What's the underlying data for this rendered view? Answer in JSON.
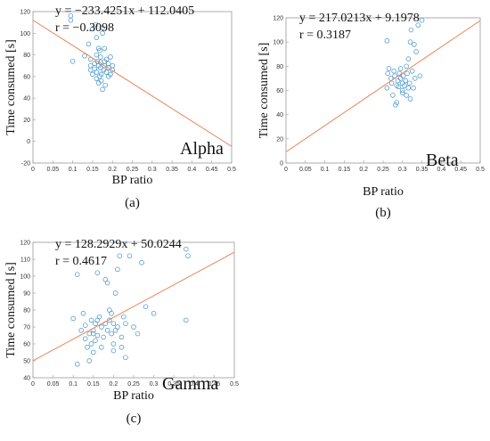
{
  "chart_data": [
    {
      "type": "scatter",
      "panel": "Alpha",
      "caption": "(a)",
      "xlabel": "BP ratio",
      "ylabel": "Time consumed [s]",
      "equation": "y = −233.4251x + 112.0405",
      "r_label": "r = −0.3098",
      "xlim": [
        0,
        0.5
      ],
      "ylim": [
        -20,
        120
      ],
      "xticks": [
        0,
        0.05,
        0.1,
        0.15,
        0.2,
        0.25,
        0.3,
        0.35,
        0.4,
        0.45,
        0.5
      ],
      "xtick_labels": [
        "0",
        "0.05",
        "0.1",
        "0.15",
        "0.2",
        "0.25",
        "0.3",
        "0.35",
        "0.4",
        "0.45",
        "0.5"
      ],
      "yticks": [
        -20,
        0,
        20,
        40,
        60,
        80,
        100,
        120
      ],
      "ytick_labels": [
        "-20",
        "0",
        "20",
        "40",
        "60",
        "80",
        "100",
        "120"
      ],
      "fit": {
        "slope": -233.4251,
        "intercept": 112.0405
      },
      "points": [
        [
          0.095,
          112
        ],
        [
          0.095,
          116
        ],
        [
          0.1,
          74
        ],
        [
          0.13,
          79
        ],
        [
          0.14,
          90
        ],
        [
          0.145,
          70
        ],
        [
          0.145,
          76
        ],
        [
          0.15,
          104
        ],
        [
          0.155,
          67
        ],
        [
          0.155,
          72
        ],
        [
          0.16,
          58
        ],
        [
          0.16,
          64
        ],
        [
          0.16,
          80
        ],
        [
          0.16,
          96
        ],
        [
          0.165,
          70
        ],
        [
          0.165,
          54
        ],
        [
          0.165,
          86
        ],
        [
          0.168,
          60
        ],
        [
          0.17,
          73
        ],
        [
          0.17,
          68
        ],
        [
          0.17,
          78
        ],
        [
          0.172,
          62
        ],
        [
          0.175,
          100
        ],
        [
          0.175,
          105
        ],
        [
          0.175,
          48
        ],
        [
          0.178,
          66
        ],
        [
          0.18,
          70
        ],
        [
          0.18,
          74
        ],
        [
          0.182,
          52
        ],
        [
          0.185,
          64
        ],
        [
          0.185,
          76
        ],
        [
          0.19,
          68
        ],
        [
          0.19,
          72
        ],
        [
          0.195,
          78
        ],
        [
          0.195,
          62
        ],
        [
          0.2,
          70
        ],
        [
          0.2,
          66
        ],
        [
          0.15,
          62
        ],
        [
          0.145,
          66
        ],
        [
          0.162,
          74
        ],
        [
          0.168,
          84
        ],
        [
          0.172,
          56
        ],
        [
          0.158,
          108
        ],
        [
          0.18,
          86
        ],
        [
          0.19,
          60
        ]
      ]
    },
    {
      "type": "scatter",
      "panel": "Beta",
      "caption": "(b)",
      "xlabel": "BP ratio",
      "ylabel": "Time consumed [s]",
      "equation": "y = 217.0213x + 9.1978",
      "r_label": "r = 0.3187",
      "xlim": [
        0,
        0.5
      ],
      "ylim": [
        0,
        120
      ],
      "xticks": [
        0,
        0.05,
        0.1,
        0.15,
        0.2,
        0.25,
        0.3,
        0.35,
        0.4,
        0.45,
        0.5
      ],
      "xtick_labels": [
        "0",
        "0.05",
        "0.1",
        "0.15",
        "0.2",
        "0.25",
        "0.3",
        "0.35",
        "0.4",
        "0.45",
        "0.5"
      ],
      "yticks": [
        0,
        20,
        40,
        60,
        80,
        100,
        120
      ],
      "ytick_labels": [
        "0",
        "20",
        "40",
        "60",
        "80",
        "100",
        "120"
      ],
      "fit": {
        "slope": 217.0213,
        "intercept": 9.1978
      },
      "points": [
        [
          0.26,
          101
        ],
        [
          0.26,
          62
        ],
        [
          0.262,
          74
        ],
        [
          0.265,
          78
        ],
        [
          0.27,
          70
        ],
        [
          0.272,
          66
        ],
        [
          0.275,
          56
        ],
        [
          0.278,
          76
        ],
        [
          0.28,
          72
        ],
        [
          0.282,
          48
        ],
        [
          0.285,
          50
        ],
        [
          0.288,
          68
        ],
        [
          0.29,
          63
        ],
        [
          0.292,
          74
        ],
        [
          0.295,
          70
        ],
        [
          0.3,
          66
        ],
        [
          0.3,
          60
        ],
        [
          0.302,
          72
        ],
        [
          0.305,
          64
        ],
        [
          0.308,
          68
        ],
        [
          0.31,
          80
        ],
        [
          0.31,
          56
        ],
        [
          0.312,
          74
        ],
        [
          0.315,
          62
        ],
        [
          0.315,
          86
        ],
        [
          0.318,
          66
        ],
        [
          0.32,
          53
        ],
        [
          0.32,
          100
        ],
        [
          0.322,
          110
        ],
        [
          0.325,
          76
        ],
        [
          0.328,
          62
        ],
        [
          0.33,
          98
        ],
        [
          0.332,
          70
        ],
        [
          0.335,
          92
        ],
        [
          0.34,
          114
        ],
        [
          0.345,
          72
        ],
        [
          0.35,
          118
        ],
        [
          0.3,
          58
        ],
        [
          0.295,
          78
        ],
        [
          0.285,
          64
        ]
      ]
    },
    {
      "type": "scatter",
      "panel": "Gamma",
      "caption": "(c)",
      "xlabel": "BP ratio",
      "ylabel": "Time consumed [s]",
      "equation": "y = 128.2929x + 50.0244",
      "r_label": "r = 0.4617",
      "xlim": [
        0,
        0.5
      ],
      "ylim": [
        40,
        120
      ],
      "xticks": [
        0,
        0.05,
        0.1,
        0.15,
        0.2,
        0.25,
        0.3,
        0.35,
        0.4,
        0.45,
        0.5
      ],
      "xtick_labels": [
        "0",
        "0.05",
        "0.1",
        "0.15",
        "0.2",
        "0.25",
        "0.3",
        "0.35",
        "0.4",
        "0.45",
        "0.5"
      ],
      "yticks": [
        40,
        50,
        60,
        70,
        80,
        90,
        100,
        110,
        120
      ],
      "ytick_labels": [
        "40",
        "50",
        "60",
        "70",
        "80",
        "90",
        "100",
        "110",
        "120"
      ],
      "fit": {
        "slope": 128.2929,
        "intercept": 50.0244
      },
      "points": [
        [
          0.1,
          75
        ],
        [
          0.11,
          101
        ],
        [
          0.11,
          48
        ],
        [
          0.12,
          68
        ],
        [
          0.125,
          78
        ],
        [
          0.13,
          63
        ],
        [
          0.13,
          71
        ],
        [
          0.135,
          58
        ],
        [
          0.14,
          66
        ],
        [
          0.14,
          50
        ],
        [
          0.145,
          60
        ],
        [
          0.145,
          74
        ],
        [
          0.15,
          55
        ],
        [
          0.15,
          68
        ],
        [
          0.155,
          72
        ],
        [
          0.155,
          62
        ],
        [
          0.16,
          102
        ],
        [
          0.16,
          65
        ],
        [
          0.165,
          76
        ],
        [
          0.17,
          70
        ],
        [
          0.17,
          58
        ],
        [
          0.175,
          64
        ],
        [
          0.18,
          98
        ],
        [
          0.18,
          72
        ],
        [
          0.185,
          96
        ],
        [
          0.185,
          68
        ],
        [
          0.19,
          74
        ],
        [
          0.19,
          80
        ],
        [
          0.195,
          66
        ],
        [
          0.195,
          78
        ],
        [
          0.2,
          60
        ],
        [
          0.2,
          72
        ],
        [
          0.205,
          68
        ],
        [
          0.21,
          104
        ],
        [
          0.21,
          70
        ],
        [
          0.215,
          112
        ],
        [
          0.22,
          58
        ],
        [
          0.22,
          64
        ],
        [
          0.225,
          76
        ],
        [
          0.23,
          52
        ],
        [
          0.24,
          112
        ],
        [
          0.25,
          70
        ],
        [
          0.26,
          66
        ],
        [
          0.27,
          108
        ],
        [
          0.28,
          82
        ],
        [
          0.3,
          78
        ],
        [
          0.38,
          116
        ],
        [
          0.38,
          74
        ],
        [
          0.385,
          112
        ],
        [
          0.2,
          56
        ],
        [
          0.15,
          66
        ],
        [
          0.205,
          90
        ],
        [
          0.23,
          72
        ],
        [
          0.16,
          74
        ]
      ]
    }
  ]
}
